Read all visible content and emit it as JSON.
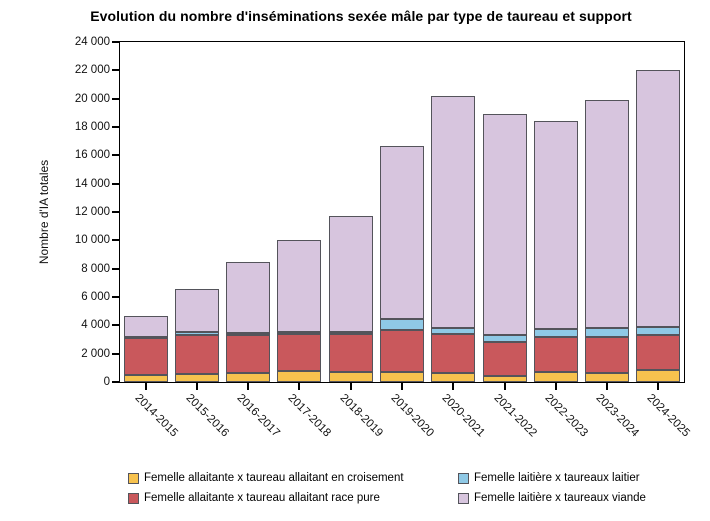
{
  "header": {
    "title": "Evolution du nombre d'inséminations sexée mâle par type de taureau et support"
  },
  "chart_data": {
    "type": "bar",
    "stacked": true,
    "title": "Evolution du nombre d'inséminations sexée mâle par type de taureau et support",
    "xlabel": "",
    "ylabel": "Nombre d'IA totales",
    "ylim": [
      0,
      24000
    ],
    "ytick_step": 2000,
    "ytick_labels": [
      "0",
      "2 000",
      "4 000",
      "6 000",
      "8 000",
      "10 000",
      "12 000",
      "14 000",
      "16 000",
      "18 000",
      "20 000",
      "22 000",
      "24 000"
    ],
    "grid": false,
    "legend_position": "bottom",
    "categories": [
      "2014-2015",
      "2015-2016",
      "2016-2017",
      "2017-2018",
      "2018-2019",
      "2019-2020",
      "2020-2021",
      "2021-2022",
      "2022-2023",
      "2023-2024",
      "2024-2025"
    ],
    "series": [
      {
        "name": "Femelle allaitante x taureau allaitant en croisement",
        "color": "#f7c24e",
        "values": [
          500,
          550,
          650,
          750,
          700,
          700,
          620,
          450,
          700,
          670,
          860
        ]
      },
      {
        "name": "Femelle allaitante x taureau allaitant race pure",
        "color": "#c9585c",
        "values": [
          2600,
          2750,
          2650,
          2650,
          2700,
          3000,
          2800,
          2350,
          2500,
          2540,
          2470
        ]
      },
      {
        "name": "Femelle laitière x taureaux laitier",
        "color": "#8fc9e6",
        "values": [
          100,
          200,
          150,
          100,
          100,
          750,
          380,
          520,
          560,
          590,
          540
        ]
      },
      {
        "name": "Femelle laitière x taureaux viande",
        "color": "#d7c5de",
        "values": [
          1450,
          3050,
          5000,
          6550,
          8200,
          12200,
          16400,
          15630,
          14690,
          16100,
          18180
        ]
      }
    ],
    "colors": {
      "segment_border": "#54545b",
      "axis": "#000000",
      "background": "#ffffff"
    }
  },
  "legend": {
    "items": [
      {
        "label": "Femelle allaitante x taureau allaitant en croisement"
      },
      {
        "label": "Femelle allaitante x taureau allaitant race pure"
      },
      {
        "label": "Femelle laitière x taureaux laitier"
      },
      {
        "label": "Femelle laitière x taureaux viande"
      }
    ]
  }
}
